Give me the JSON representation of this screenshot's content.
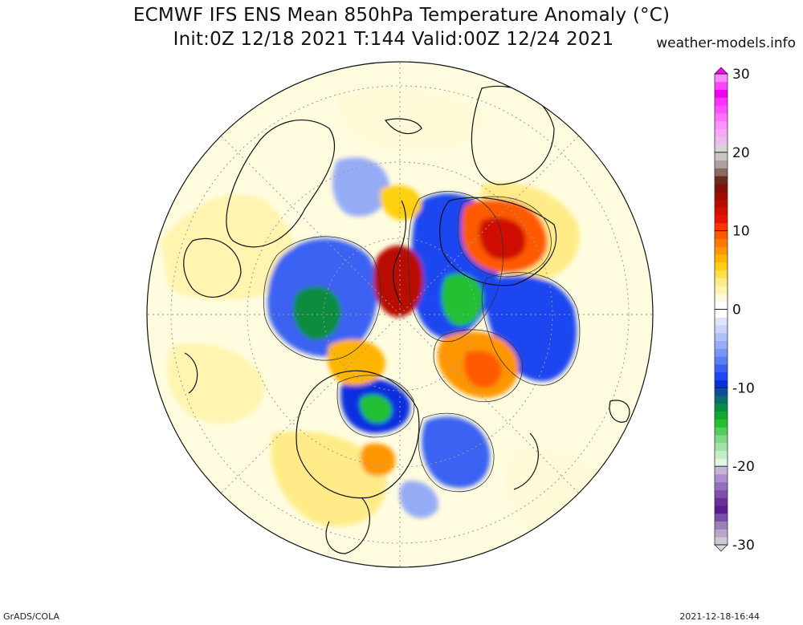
{
  "header": {
    "title_line1": "ECMWF IFS ENS Mean 850hPa Temperature Anomaly (°C)",
    "title_line2": "Init:0Z 12/18 2021  T:144 Valid:00Z 12/24 2021",
    "site": "weather-models.info"
  },
  "footer": {
    "software": "GrADS/COLA",
    "timestamp": "2021-12-18-16:44"
  },
  "colorbar": {
    "min": -30,
    "max": 30,
    "tick_labels": [
      "30",
      "20",
      "10",
      "0",
      "-10",
      "-20",
      "-30"
    ],
    "colors_bottom_to_top": [
      "#cfc8d8",
      "#b8a8c8",
      "#9a80b8",
      "#7a4ea8",
      "#5a1c90",
      "#6a2e98",
      "#8050aa",
      "#9470bc",
      "#aa90cc",
      "#c4b4dc",
      "#e2f6e6",
      "#c4eec8",
      "#a2e4a8",
      "#7ed886",
      "#52cc5c",
      "#24c030",
      "#10a830",
      "#0c8c40",
      "#0a6e68",
      "#0a4e9c",
      "#0a2ee0",
      "#1e46f0",
      "#3a62f2",
      "#5a7ef4",
      "#7896f6",
      "#96acf6",
      "#b0c0f8",
      "#c8d4fa",
      "#dde4fb",
      "#ffffff",
      "#ffffff",
      "#fffbd8",
      "#fff4b0",
      "#ffec88",
      "#ffe04a",
      "#ffd010",
      "#ffb400",
      "#ff9600",
      "#ff7800",
      "#ff5a00",
      "#ff3200",
      "#e81400",
      "#d01000",
      "#b80e00",
      "#9c0c00",
      "#801008",
      "#6a2a1e",
      "#8a6a62",
      "#b0a0a0",
      "#c8c4c4",
      "#d8d4d6",
      "#ecbcec",
      "#f8a8f8",
      "#ff90ff",
      "#ff70ff",
      "#ff50ff",
      "#ff30ff",
      "#f000f0",
      "#ff44ff",
      "#ff88ff"
    ]
  },
  "map": {
    "projection": "north-polar-stereographic",
    "variable": "850hPa temperature anomaly",
    "anomaly_colors": {
      "neutral": "#ffffff",
      "weak_warm": "#fffbd8",
      "warm": "#ffe04a",
      "strong_warm": "#ff7800",
      "extreme_warm": "#c81400",
      "weak_cold": "#c8d4fa",
      "cold": "#3a62f2",
      "strong_cold": "#0a2ee0",
      "extreme_cold": "#24c030"
    }
  }
}
